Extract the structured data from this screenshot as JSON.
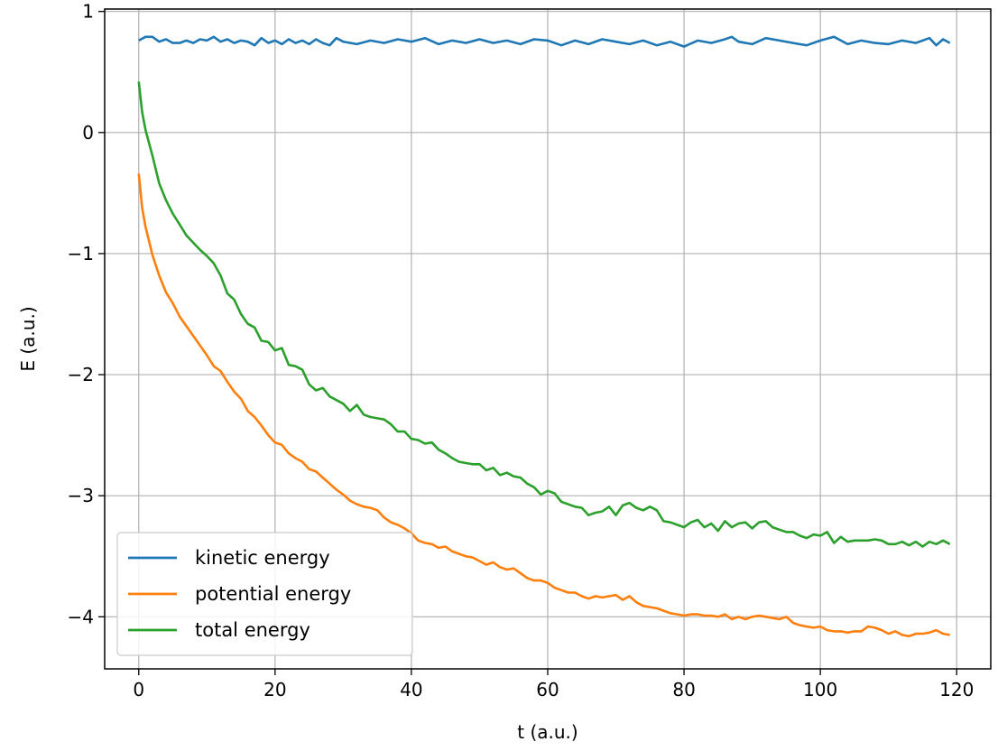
{
  "chart_data": {
    "type": "line",
    "title": "",
    "xlabel": "t (a.u.)",
    "ylabel": "E (a.u.)",
    "xlim": [
      -5,
      125
    ],
    "ylim": [
      -4.43,
      1.02
    ],
    "xticks": [
      0,
      20,
      40,
      60,
      80,
      100,
      120
    ],
    "xtick_labels": [
      "0",
      "20",
      "40",
      "60",
      "80",
      "100",
      "120"
    ],
    "yticks": [
      1,
      0,
      -1,
      -2,
      -3,
      -4
    ],
    "ytick_labels": [
      "1",
      "0",
      "−1",
      "−2",
      "−3",
      "−4"
    ],
    "grid": true,
    "legend_position": "lower-left",
    "series": [
      {
        "name": "kinetic energy",
        "color": "#1f77b4",
        "x": [
          0,
          1,
          2,
          3,
          4,
          5,
          6,
          7,
          8,
          9,
          10,
          11,
          12,
          13,
          14,
          15,
          16,
          17,
          18,
          19,
          20,
          21,
          22,
          23,
          24,
          25,
          26,
          27,
          28,
          29,
          30,
          32,
          34,
          36,
          38,
          40,
          42,
          44,
          46,
          48,
          50,
          52,
          54,
          56,
          58,
          60,
          62,
          64,
          66,
          68,
          70,
          72,
          74,
          76,
          78,
          80,
          82,
          84,
          86,
          87,
          88,
          90,
          92,
          94,
          96,
          98,
          100,
          102,
          104,
          106,
          108,
          110,
          112,
          114,
          116,
          117,
          118,
          119
        ],
        "y": [
          0.76,
          0.79,
          0.79,
          0.75,
          0.77,
          0.74,
          0.74,
          0.76,
          0.74,
          0.77,
          0.76,
          0.79,
          0.75,
          0.77,
          0.74,
          0.76,
          0.75,
          0.72,
          0.78,
          0.74,
          0.76,
          0.73,
          0.77,
          0.74,
          0.76,
          0.73,
          0.77,
          0.74,
          0.72,
          0.78,
          0.75,
          0.73,
          0.76,
          0.74,
          0.77,
          0.75,
          0.78,
          0.73,
          0.76,
          0.74,
          0.77,
          0.74,
          0.76,
          0.73,
          0.77,
          0.76,
          0.72,
          0.76,
          0.73,
          0.77,
          0.75,
          0.73,
          0.76,
          0.72,
          0.75,
          0.71,
          0.76,
          0.74,
          0.77,
          0.79,
          0.75,
          0.73,
          0.78,
          0.76,
          0.74,
          0.72,
          0.76,
          0.79,
          0.73,
          0.76,
          0.74,
          0.73,
          0.76,
          0.74,
          0.78,
          0.72,
          0.77,
          0.74
        ]
      },
      {
        "name": "potential energy",
        "color": "#ff7f0e",
        "x": [
          0,
          0.5,
          1,
          2,
          3,
          4,
          5,
          6,
          7,
          8,
          9,
          10,
          11,
          12,
          13,
          14,
          15,
          16,
          17,
          18,
          19,
          20,
          21,
          22,
          23,
          24,
          25,
          26,
          27,
          28,
          29,
          30,
          31,
          32,
          33,
          34,
          35,
          36,
          37,
          38,
          39,
          40,
          41,
          42,
          43,
          44,
          45,
          46,
          47,
          48,
          49,
          50,
          51,
          52,
          53,
          54,
          55,
          56,
          57,
          58,
          59,
          60,
          61,
          62,
          63,
          64,
          65,
          66,
          67,
          68,
          69,
          70,
          71,
          72,
          73,
          74,
          75,
          76,
          77,
          78,
          79,
          80,
          81,
          82,
          83,
          84,
          85,
          86,
          87,
          88,
          89,
          90,
          91,
          92,
          93,
          94,
          95,
          96,
          97,
          98,
          99,
          100,
          101,
          102,
          103,
          104,
          105,
          106,
          107,
          108,
          109,
          110,
          111,
          112,
          113,
          114,
          115,
          116,
          117,
          118,
          119
        ],
        "y": [
          -0.34,
          -0.62,
          -0.78,
          -1.01,
          -1.18,
          -1.32,
          -1.41,
          -1.52,
          -1.6,
          -1.68,
          -1.76,
          -1.84,
          -1.93,
          -1.97,
          -2.06,
          -2.14,
          -2.2,
          -2.3,
          -2.35,
          -2.42,
          -2.5,
          -2.56,
          -2.58,
          -2.65,
          -2.69,
          -2.72,
          -2.78,
          -2.8,
          -2.85,
          -2.9,
          -2.95,
          -2.99,
          -3.04,
          -3.07,
          -3.09,
          -3.1,
          -3.12,
          -3.18,
          -3.22,
          -3.24,
          -3.27,
          -3.31,
          -3.37,
          -3.39,
          -3.4,
          -3.43,
          -3.42,
          -3.46,
          -3.48,
          -3.5,
          -3.51,
          -3.54,
          -3.57,
          -3.55,
          -3.59,
          -3.61,
          -3.6,
          -3.64,
          -3.68,
          -3.7,
          -3.7,
          -3.72,
          -3.76,
          -3.78,
          -3.8,
          -3.8,
          -3.83,
          -3.85,
          -3.83,
          -3.84,
          -3.83,
          -3.82,
          -3.86,
          -3.83,
          -3.88,
          -3.91,
          -3.92,
          -3.93,
          -3.95,
          -3.97,
          -3.98,
          -3.99,
          -3.98,
          -3.98,
          -3.99,
          -3.99,
          -4.0,
          -3.98,
          -4.02,
          -4.0,
          -4.02,
          -4.0,
          -3.99,
          -4.0,
          -4.01,
          -4.02,
          -4.0,
          -4.05,
          -4.07,
          -4.08,
          -4.09,
          -4.08,
          -4.11,
          -4.12,
          -4.12,
          -4.13,
          -4.12,
          -4.12,
          -4.08,
          -4.09,
          -4.11,
          -4.14,
          -4.12,
          -4.15,
          -4.16,
          -4.14,
          -4.14,
          -4.13,
          -4.11,
          -4.14,
          -4.15
        ]
      },
      {
        "name": "total energy",
        "color": "#2ca02c",
        "x": [
          0,
          0.5,
          1,
          2,
          3,
          4,
          5,
          6,
          7,
          8,
          9,
          10,
          11,
          12,
          13,
          14,
          15,
          16,
          17,
          18,
          19,
          20,
          21,
          22,
          23,
          24,
          25,
          26,
          27,
          28,
          29,
          30,
          31,
          32,
          33,
          34,
          35,
          36,
          37,
          38,
          39,
          40,
          41,
          42,
          43,
          44,
          45,
          46,
          47,
          48,
          49,
          50,
          51,
          52,
          53,
          54,
          55,
          56,
          57,
          58,
          59,
          60,
          61,
          62,
          63,
          64,
          65,
          66,
          67,
          68,
          69,
          70,
          71,
          72,
          73,
          74,
          75,
          76,
          77,
          78,
          79,
          80,
          81,
          82,
          83,
          84,
          85,
          86,
          87,
          88,
          89,
          90,
          91,
          92,
          93,
          94,
          95,
          96,
          97,
          98,
          99,
          100,
          101,
          102,
          103,
          104,
          105,
          106,
          107,
          108,
          109,
          110,
          111,
          112,
          113,
          114,
          115,
          116,
          117,
          118,
          119
        ],
        "y": [
          0.42,
          0.17,
          0.02,
          -0.19,
          -0.42,
          -0.56,
          -0.67,
          -0.76,
          -0.85,
          -0.91,
          -0.97,
          -1.02,
          -1.08,
          -1.18,
          -1.33,
          -1.38,
          -1.5,
          -1.58,
          -1.61,
          -1.72,
          -1.73,
          -1.8,
          -1.78,
          -1.92,
          -1.93,
          -1.96,
          -2.08,
          -2.13,
          -2.11,
          -2.18,
          -2.21,
          -2.24,
          -2.3,
          -2.25,
          -2.33,
          -2.35,
          -2.36,
          -2.37,
          -2.41,
          -2.47,
          -2.47,
          -2.53,
          -2.54,
          -2.57,
          -2.56,
          -2.62,
          -2.65,
          -2.69,
          -2.72,
          -2.73,
          -2.74,
          -2.74,
          -2.79,
          -2.77,
          -2.83,
          -2.81,
          -2.84,
          -2.85,
          -2.9,
          -2.93,
          -2.99,
          -2.96,
          -2.98,
          -3.05,
          -3.07,
          -3.09,
          -3.1,
          -3.16,
          -3.14,
          -3.13,
          -3.09,
          -3.16,
          -3.08,
          -3.06,
          -3.1,
          -3.12,
          -3.09,
          -3.12,
          -3.21,
          -3.22,
          -3.24,
          -3.26,
          -3.22,
          -3.2,
          -3.26,
          -3.23,
          -3.29,
          -3.21,
          -3.26,
          -3.23,
          -3.22,
          -3.27,
          -3.22,
          -3.21,
          -3.26,
          -3.28,
          -3.3,
          -3.3,
          -3.33,
          -3.35,
          -3.32,
          -3.33,
          -3.3,
          -3.39,
          -3.34,
          -3.38,
          -3.37,
          -3.37,
          -3.37,
          -3.36,
          -3.37,
          -3.4,
          -3.4,
          -3.38,
          -3.41,
          -3.38,
          -3.42,
          -3.38,
          -3.4,
          -3.37,
          -3.4
        ]
      }
    ]
  }
}
